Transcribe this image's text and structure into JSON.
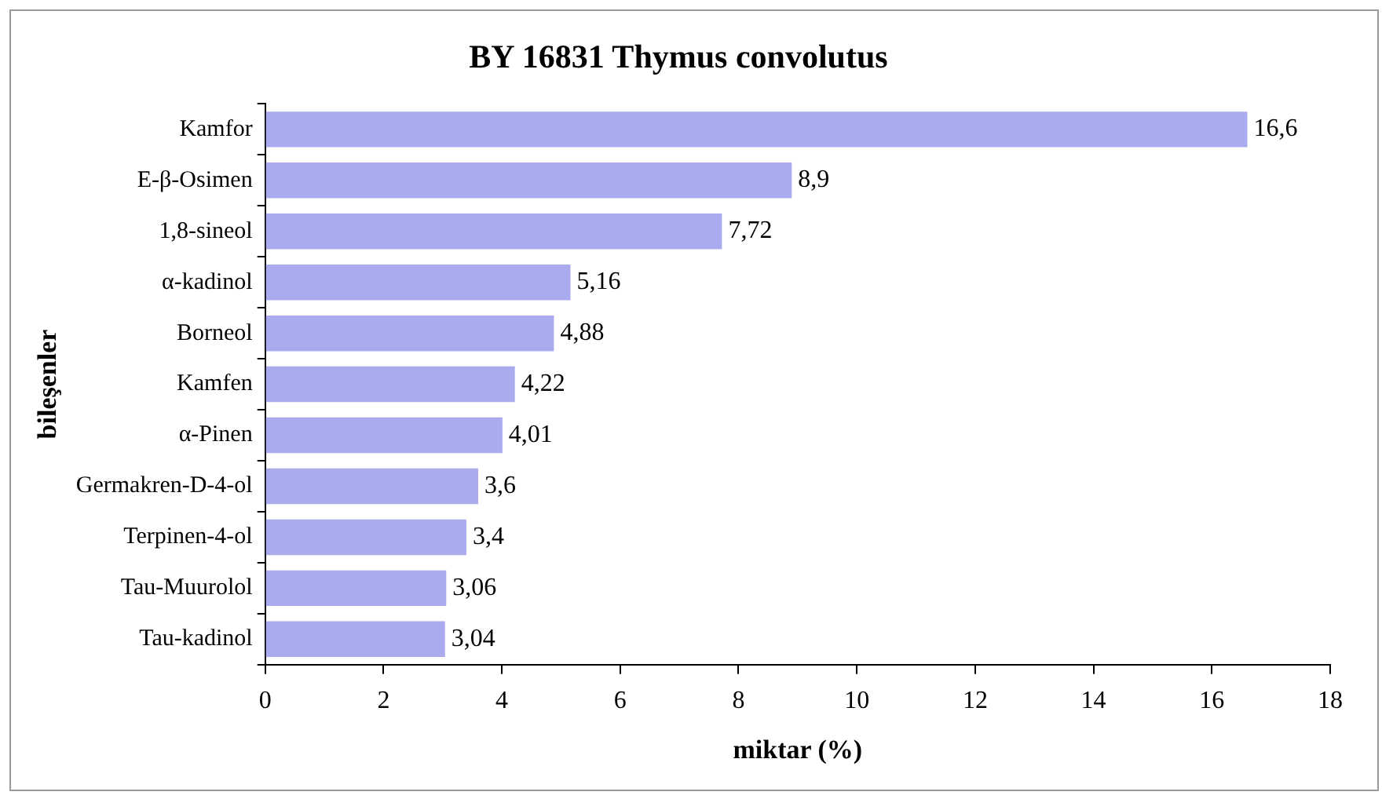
{
  "chart_data": {
    "type": "bar",
    "orientation": "horizontal",
    "title": "BY 16831 Thymus convolutus",
    "xlabel": "miktar (%)",
    "ylabel": "bileşenler",
    "categories": [
      "Kamfor",
      "E-β-Osimen",
      "1,8-sineol",
      "α-kadinol",
      "Borneol",
      "Kamfen",
      "α-Pinen",
      "Germakren-D-4-ol",
      "Terpinen-4-ol",
      "Tau-Muurolol",
      "Tau-kadinol"
    ],
    "values": [
      16.6,
      8.9,
      7.72,
      5.16,
      4.88,
      4.22,
      4.01,
      3.6,
      3.4,
      3.06,
      3.04
    ],
    "value_labels": [
      "16,6",
      "8,9",
      "7,72",
      "5,16",
      "4,88",
      "4,22",
      "4,01",
      "3,6",
      "3,4",
      "3,06",
      "3,04"
    ],
    "color": "#aaaaee",
    "xlim": [
      0,
      18
    ],
    "xticks": [
      0,
      2,
      4,
      6,
      8,
      10,
      12,
      14,
      16,
      18
    ],
    "grid": false,
    "legend": false
  }
}
